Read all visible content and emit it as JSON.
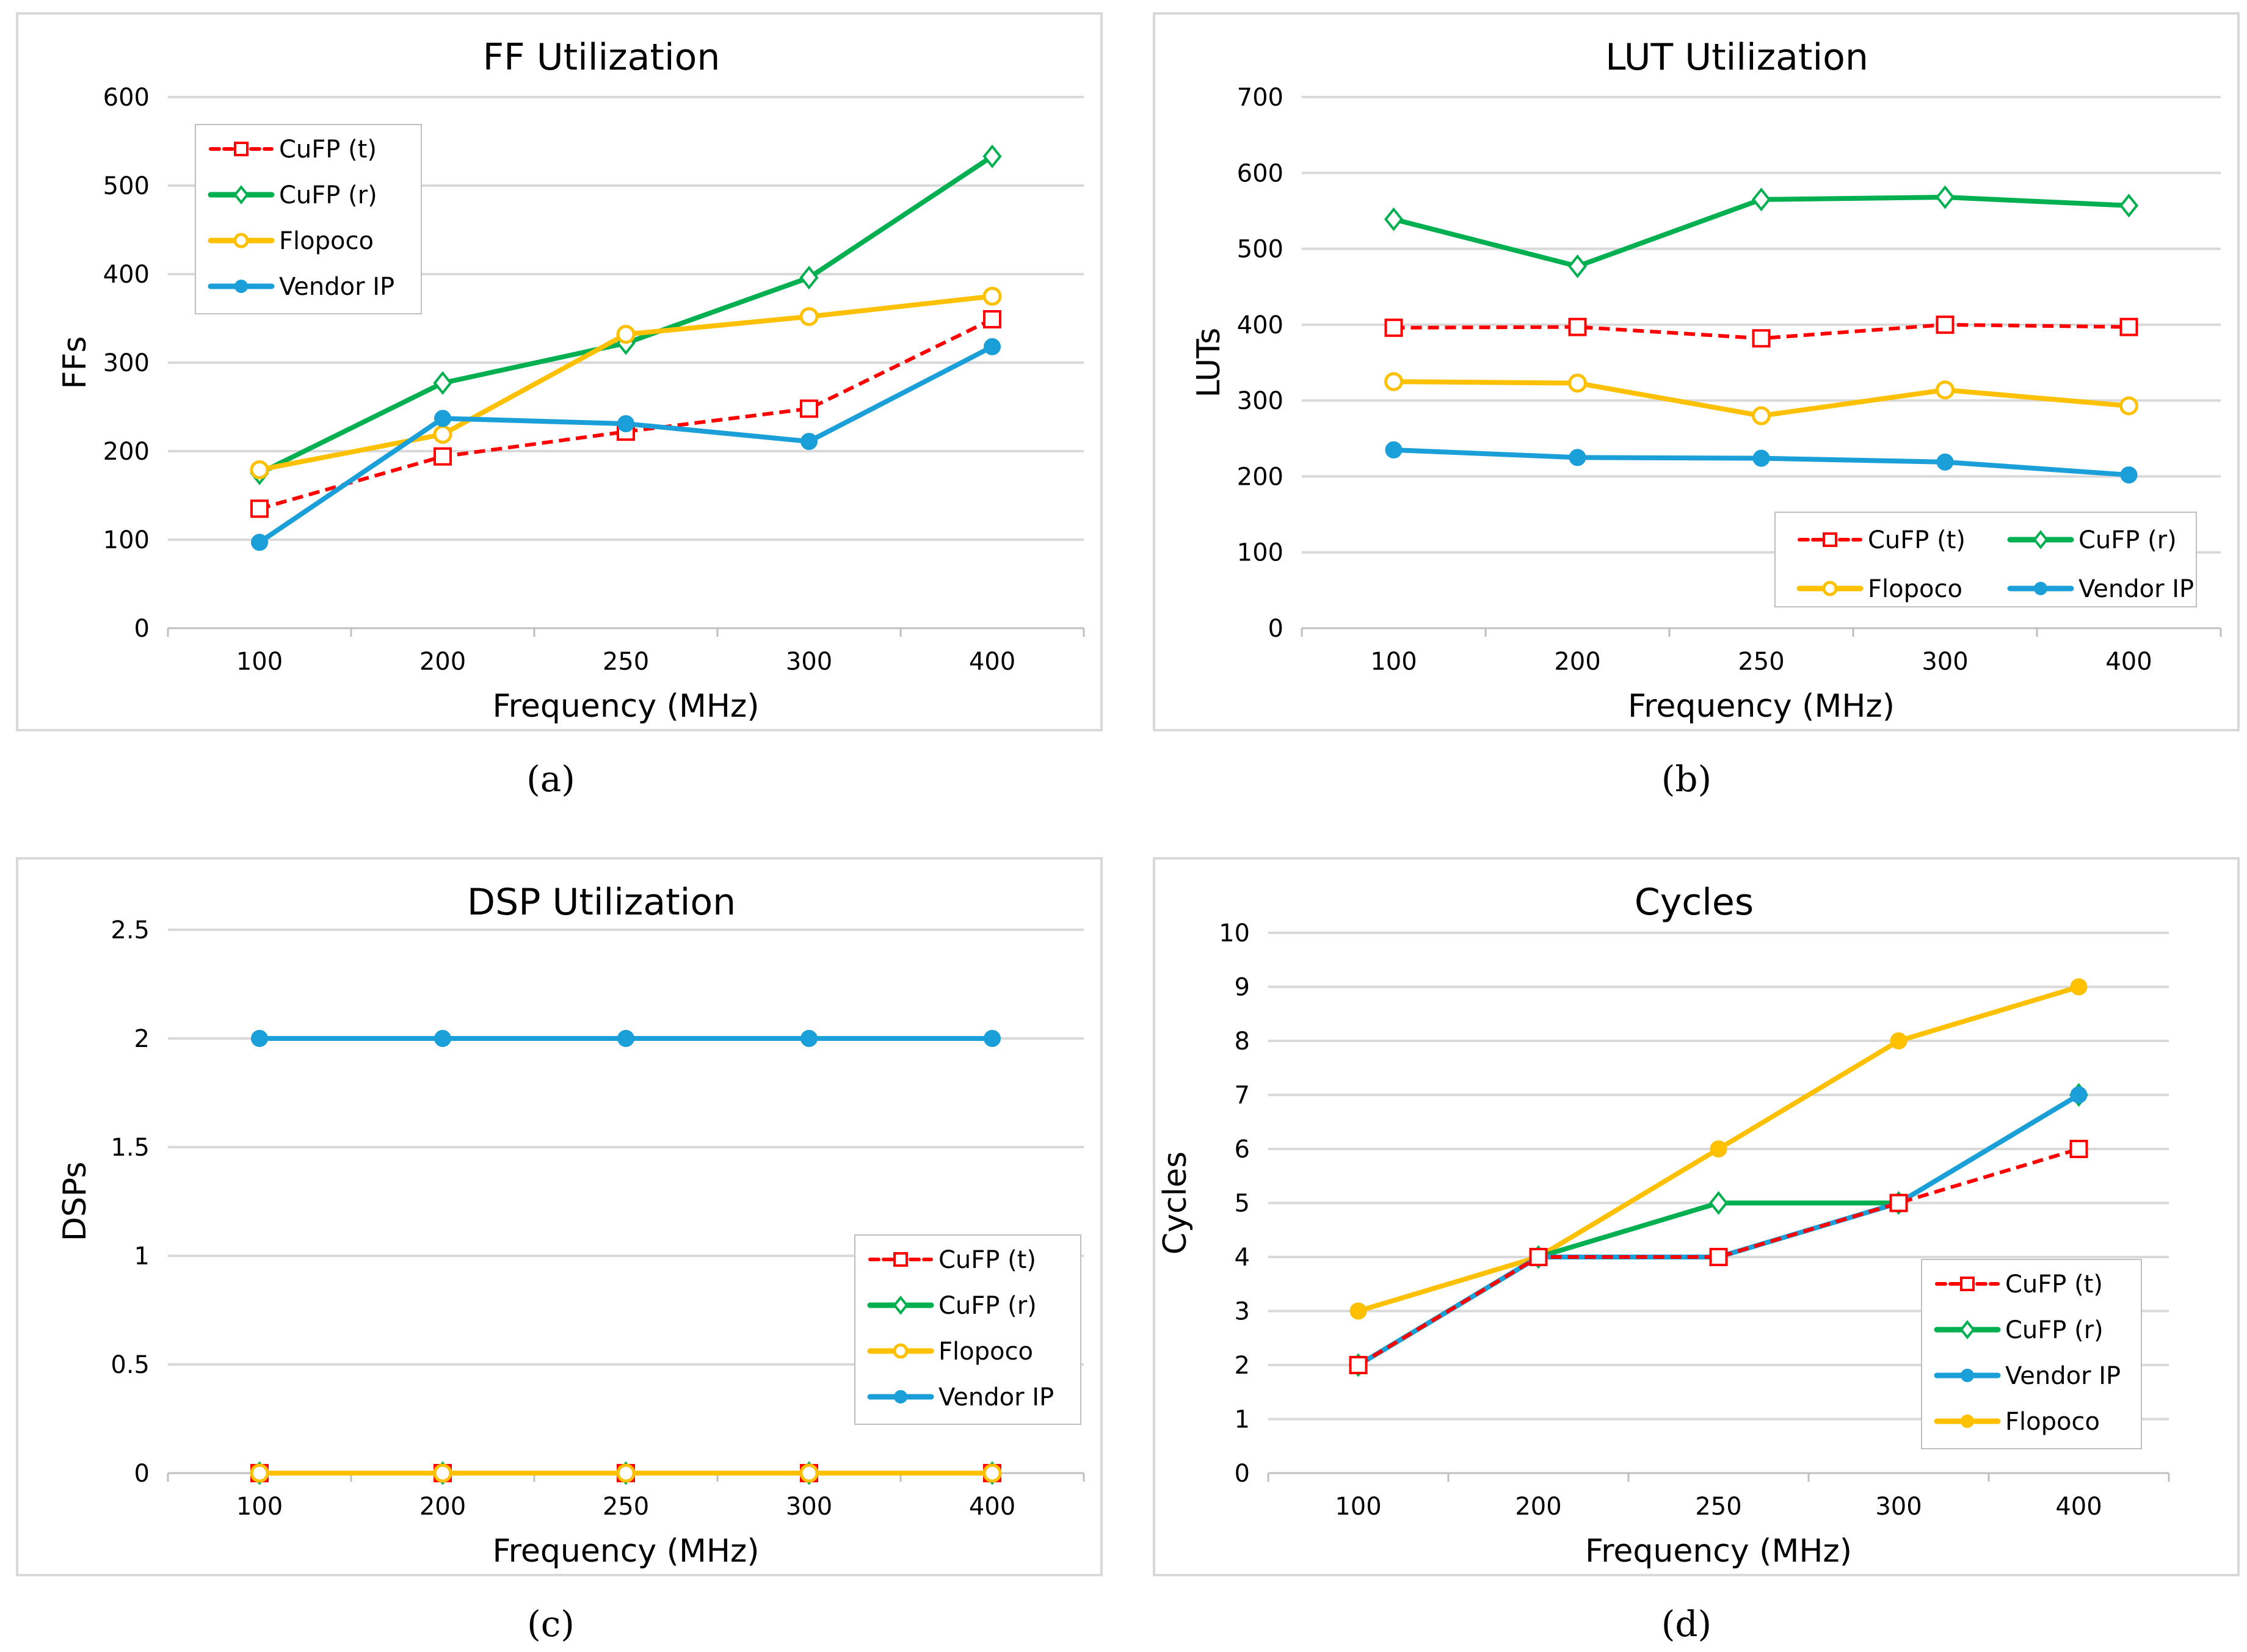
{
  "captions": [
    "(a)",
    "(b)",
    "(c)",
    "(d)"
  ],
  "series_colors": {
    "CuFP (t)": "#FF0000",
    "CuFP (r)": "#00B050",
    "Flopoco": "#FFC000",
    "Vendor IP": "#1B9FD8"
  },
  "chart_data": [
    {
      "type": "line",
      "title": "FF Utilization",
      "xlabel": "Frequency (MHz)",
      "ylabel": "FFs",
      "categories": [
        "100",
        "200",
        "250",
        "300",
        "400"
      ],
      "ylim": [
        0,
        600
      ],
      "yticks": [
        0,
        100,
        200,
        300,
        400,
        500,
        600
      ],
      "grid": true,
      "legend_position": "top-left",
      "legend_order": [
        "CuFP (t)",
        "CuFP (r)",
        "Flopoco",
        "Vendor IP"
      ],
      "series": [
        {
          "name": "CuFP (t)",
          "values": [
            135,
            194,
            222,
            248,
            349
          ],
          "marker": "square-open",
          "dash": true
        },
        {
          "name": "CuFP (r)",
          "values": [
            175,
            277,
            322,
            396,
            533
          ],
          "marker": "diamond-open",
          "dash": false
        },
        {
          "name": "Flopoco",
          "values": [
            179,
            219,
            332,
            352,
            375
          ],
          "marker": "circle-open",
          "dash": false
        },
        {
          "name": "Vendor IP",
          "values": [
            97,
            237,
            231,
            211,
            318
          ],
          "marker": "circle-filled",
          "dash": false
        }
      ]
    },
    {
      "type": "line",
      "title": "LUT Utilization",
      "xlabel": "Frequency (MHz)",
      "ylabel": "LUTs",
      "categories": [
        "100",
        "200",
        "250",
        "300",
        "400"
      ],
      "ylim": [
        0,
        700
      ],
      "yticks": [
        0,
        100,
        200,
        300,
        400,
        500,
        600,
        700
      ],
      "grid": true,
      "legend_position": "bottom-right",
      "legend_order": [
        "CuFP (t)",
        "CuFP (r)",
        "Flopoco",
        "Vendor IP"
      ],
      "series": [
        {
          "name": "CuFP (t)",
          "values": [
            396,
            397,
            382,
            400,
            397
          ],
          "marker": "square-open",
          "dash": true
        },
        {
          "name": "CuFP (r)",
          "values": [
            539,
            477,
            565,
            568,
            557
          ],
          "marker": "diamond-open",
          "dash": false
        },
        {
          "name": "Flopoco",
          "values": [
            325,
            323,
            280,
            314,
            293
          ],
          "marker": "circle-open",
          "dash": false
        },
        {
          "name": "Vendor IP",
          "values": [
            235,
            225,
            224,
            219,
            202
          ],
          "marker": "circle-filled",
          "dash": false
        }
      ]
    },
    {
      "type": "line",
      "title": "DSP Utilization",
      "xlabel": "Frequency (MHz)",
      "ylabel": "DSPs",
      "categories": [
        "100",
        "200",
        "250",
        "300",
        "400"
      ],
      "ylim": [
        0,
        2.5
      ],
      "yticks": [
        0,
        0.5,
        1,
        1.5,
        2,
        2.5
      ],
      "grid": true,
      "legend_position": "bottom-right",
      "legend_order": [
        "CuFP (t)",
        "CuFP (r)",
        "Flopoco",
        "Vendor IP"
      ],
      "series": [
        {
          "name": "CuFP (t)",
          "values": [
            0,
            0,
            0,
            0,
            0
          ],
          "marker": "square-open",
          "dash": true
        },
        {
          "name": "CuFP (r)",
          "values": [
            0,
            0,
            0,
            0,
            0
          ],
          "marker": "diamond-open",
          "dash": false
        },
        {
          "name": "Flopoco",
          "values": [
            0,
            0,
            0,
            0,
            0
          ],
          "marker": "circle-open",
          "dash": false
        },
        {
          "name": "Vendor IP",
          "values": [
            2,
            2,
            2,
            2,
            2
          ],
          "marker": "circle-filled",
          "dash": false
        }
      ]
    },
    {
      "type": "line",
      "title": "Cycles",
      "xlabel": "Frequency (MHz)",
      "ylabel": "Cycles",
      "categories": [
        "100",
        "200",
        "250",
        "300",
        "400"
      ],
      "ylim": [
        0,
        10
      ],
      "yticks": [
        0,
        1,
        2,
        3,
        4,
        5,
        6,
        7,
        8,
        9,
        10
      ],
      "grid": true,
      "legend_position": "bottom-right",
      "legend_order": [
        "CuFP (t)",
        "CuFP (r)",
        "Vendor IP",
        "Flopoco"
      ],
      "series": [
        {
          "name": "Flopoco",
          "values": [
            3,
            4,
            6,
            8,
            9
          ],
          "marker": "circle-filled",
          "dash": false
        },
        {
          "name": "CuFP (r)",
          "values": [
            2,
            4,
            5,
            5,
            7
          ],
          "marker": "diamond-open",
          "dash": false
        },
        {
          "name": "Vendor IP",
          "values": [
            2,
            4,
            4,
            5,
            7
          ],
          "marker": "circle-filled",
          "dash": false
        },
        {
          "name": "CuFP (t)",
          "values": [
            2,
            4,
            4,
            5,
            6
          ],
          "marker": "square-open",
          "dash": true
        }
      ]
    }
  ]
}
